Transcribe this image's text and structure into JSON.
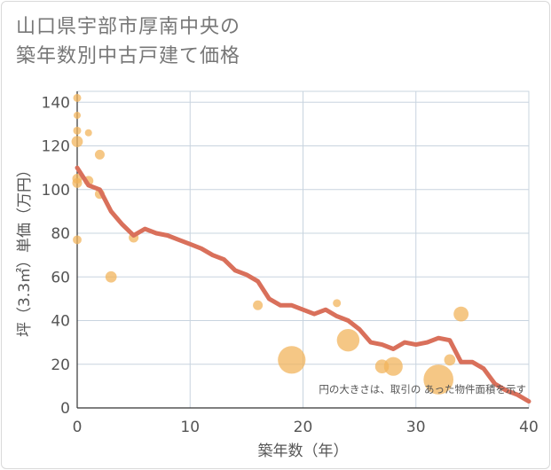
{
  "title": {
    "line1": "山口県宇部市厚南中央の",
    "line2": "築年数別中古戸建て価格"
  },
  "chart_data": {
    "type": "scatter+line",
    "xlabel": "築年数（年）",
    "ylabel": "坪（3.3㎡）単価（万円）",
    "xlim": [
      0,
      40
    ],
    "ylim": [
      0,
      145
    ],
    "xticks": [
      0,
      10,
      20,
      30,
      40
    ],
    "yticks": [
      0,
      20,
      40,
      60,
      80,
      100,
      120,
      140
    ],
    "grid": true,
    "annotation": "円の大きさは、取引の あった物件面積を示す",
    "colors": {
      "bubble": "#f2b45c",
      "line": "#d9705b",
      "grid": "#c8d4df"
    },
    "bubbles": [
      {
        "x": 0,
        "y": 142,
        "size": 1
      },
      {
        "x": 0,
        "y": 134,
        "size": 0.8
      },
      {
        "x": 0,
        "y": 127,
        "size": 1
      },
      {
        "x": 0,
        "y": 122,
        "size": 2
      },
      {
        "x": 0,
        "y": 105,
        "size": 1.5
      },
      {
        "x": 0,
        "y": 103,
        "size": 1.5
      },
      {
        "x": 0,
        "y": 77,
        "size": 1.2
      },
      {
        "x": 1,
        "y": 126,
        "size": 0.8
      },
      {
        "x": 1,
        "y": 104,
        "size": 1.5
      },
      {
        "x": 2,
        "y": 116,
        "size": 1.5
      },
      {
        "x": 2,
        "y": 98,
        "size": 1.5
      },
      {
        "x": 3,
        "y": 60,
        "size": 2
      },
      {
        "x": 5,
        "y": 78,
        "size": 1.5
      },
      {
        "x": 16,
        "y": 47,
        "size": 1.5
      },
      {
        "x": 19,
        "y": 22,
        "size": 12
      },
      {
        "x": 23,
        "y": 48,
        "size": 1
      },
      {
        "x": 24,
        "y": 31,
        "size": 8
      },
      {
        "x": 27,
        "y": 19,
        "size": 3
      },
      {
        "x": 28,
        "y": 19,
        "size": 5.5
      },
      {
        "x": 32,
        "y": 13,
        "size": 14
      },
      {
        "x": 33,
        "y": 22,
        "size": 2
      },
      {
        "x": 34,
        "y": 43,
        "size": 3.5
      }
    ],
    "trend": {
      "x": [
        0,
        1,
        2,
        3,
        4,
        5,
        6,
        7,
        8,
        9,
        10,
        11,
        12,
        13,
        14,
        15,
        16,
        17,
        18,
        19,
        20,
        21,
        22,
        23,
        24,
        25,
        26,
        27,
        28,
        29,
        30,
        31,
        32,
        33,
        34,
        35,
        36,
        37,
        38,
        39,
        40
      ],
      "y": [
        110,
        102,
        100,
        90,
        84,
        79,
        82,
        80,
        79,
        77,
        75,
        73,
        70,
        68,
        63,
        61,
        58,
        50,
        47,
        47,
        45,
        43,
        45,
        42,
        40,
        36,
        30,
        29,
        27,
        30,
        29,
        30,
        32,
        31,
        21,
        21,
        18,
        11,
        8,
        6,
        3
      ]
    }
  }
}
